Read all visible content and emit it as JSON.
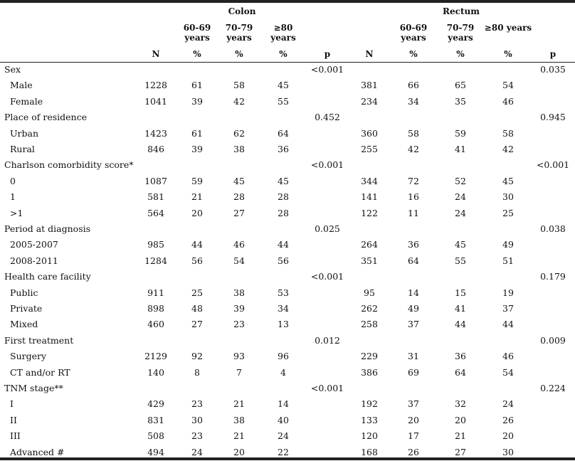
{
  "groups": {
    "colon": "Colon",
    "rectum": "Rectum"
  },
  "age_headers": {
    "a1_line1": "60-69",
    "a1_line2": "years",
    "a2_line1": "70-79",
    "a2_line2": "years",
    "a3_line1": "≥80",
    "a3_line2": "years",
    "a3_rectum": "≥80 years"
  },
  "units": {
    "n": "N",
    "pct": "%",
    "p": "p"
  },
  "rows": [
    {
      "label": "Sex",
      "cp": "<0.001",
      "rp": "0.035"
    },
    {
      "label": "Male",
      "cn": "1228",
      "c1": "61",
      "c2": "58",
      "c3": "45",
      "rn": "381",
      "r1": "66",
      "r2": "65",
      "r3": "54"
    },
    {
      "label": "Female",
      "cn": "1041",
      "c1": "39",
      "c2": "42",
      "c3": "55",
      "rn": "234",
      "r1": "34",
      "r2": "35",
      "r3": "46"
    },
    {
      "label": "Place of residence",
      "cp": "0.452",
      "rp": "0.945"
    },
    {
      "label": "Urban",
      "cn": "1423",
      "c1": "61",
      "c2": "62",
      "c3": "64",
      "rn": "360",
      "r1": "58",
      "r2": "59",
      "r3": "58"
    },
    {
      "label": "Rural",
      "cn": "846",
      "c1": "39",
      "c2": "38",
      "c3": "36",
      "rn": "255",
      "r1": "42",
      "r2": "41",
      "r3": "42"
    },
    {
      "label": "Charlson comorbidity score*",
      "cp": "<0.001",
      "rp": "<0.001"
    },
    {
      "label": "0",
      "cn": "1087",
      "c1": "59",
      "c2": "45",
      "c3": "45",
      "rn": "344",
      "r1": "72",
      "r2": "52",
      "r3": "45"
    },
    {
      "label": "1",
      "cn": "581",
      "c1": "21",
      "c2": "28",
      "c3": "28",
      "rn": "141",
      "r1": "16",
      "r2": "24",
      "r3": "30"
    },
    {
      "label": ">1",
      "cn": "564",
      "c1": "20",
      "c2": "27",
      "c3": "28",
      "rn": "122",
      "r1": "11",
      "r2": "24",
      "r3": "25"
    },
    {
      "label": "Period at diagnosis",
      "cp": "0.025",
      "rp": "0.038"
    },
    {
      "label": "2005-2007",
      "cn": "985",
      "c1": "44",
      "c2": "46",
      "c3": "44",
      "rn": "264",
      "r1": "36",
      "r2": "45",
      "r3": "49"
    },
    {
      "label": "2008-2011",
      "cn": "1284",
      "c1": "56",
      "c2": "54",
      "c3": "56",
      "rn": "351",
      "r1": "64",
      "r2": "55",
      "r3": "51"
    },
    {
      "label": "Health care facility",
      "cp": "<0.001",
      "rp": "0.179"
    },
    {
      "label": "Public",
      "cn": "911",
      "c1": "25",
      "c2": "38",
      "c3": "53",
      "rn": "95",
      "r1": "14",
      "r2": "15",
      "r3": "19"
    },
    {
      "label": "Private",
      "cn": "898",
      "c1": "48",
      "c2": "39",
      "c3": "34",
      "rn": "262",
      "r1": "49",
      "r2": "41",
      "r3": "37"
    },
    {
      "label": "Mixed",
      "cn": "460",
      "c1": "27",
      "c2": "23",
      "c3": "13",
      "rn": "258",
      "r1": "37",
      "r2": "44",
      "r3": "44"
    },
    {
      "label": "First treatment",
      "cp": "0.012",
      "rp": "0.009"
    },
    {
      "label": "Surgery",
      "cn": "2129",
      "c1": "92",
      "c2": "93",
      "c3": "96",
      "rn": "229",
      "r1": "31",
      "r2": "36",
      "r3": "46"
    },
    {
      "label": "CT and/or RT",
      "cn": "140",
      "c1": "8",
      "c2": "7",
      "c3": "4",
      "rn": "386",
      "r1": "69",
      "r2": "64",
      "r3": "54"
    },
    {
      "label": "TNM stage**",
      "cp": "<0.001",
      "rp": "0.224"
    },
    {
      "label": "I",
      "cn": "429",
      "c1": "23",
      "c2": "21",
      "c3": "14",
      "rn": "192",
      "r1": "37",
      "r2": "32",
      "r3": "24"
    },
    {
      "label": "II",
      "cn": "831",
      "c1": "30",
      "c2": "38",
      "c3": "40",
      "rn": "133",
      "r1": "20",
      "r2": "20",
      "r3": "26"
    },
    {
      "label": "III",
      "cn": "508",
      "c1": "23",
      "c2": "21",
      "c3": "24",
      "rn": "120",
      "r1": "17",
      "r2": "21",
      "r3": "20"
    },
    {
      "label": "Advanced #",
      "cn": "494",
      "c1": "24",
      "c2": "20",
      "c3": "22",
      "rn": "168",
      "r1": "26",
      "r2": "27",
      "r3": "30"
    }
  ]
}
